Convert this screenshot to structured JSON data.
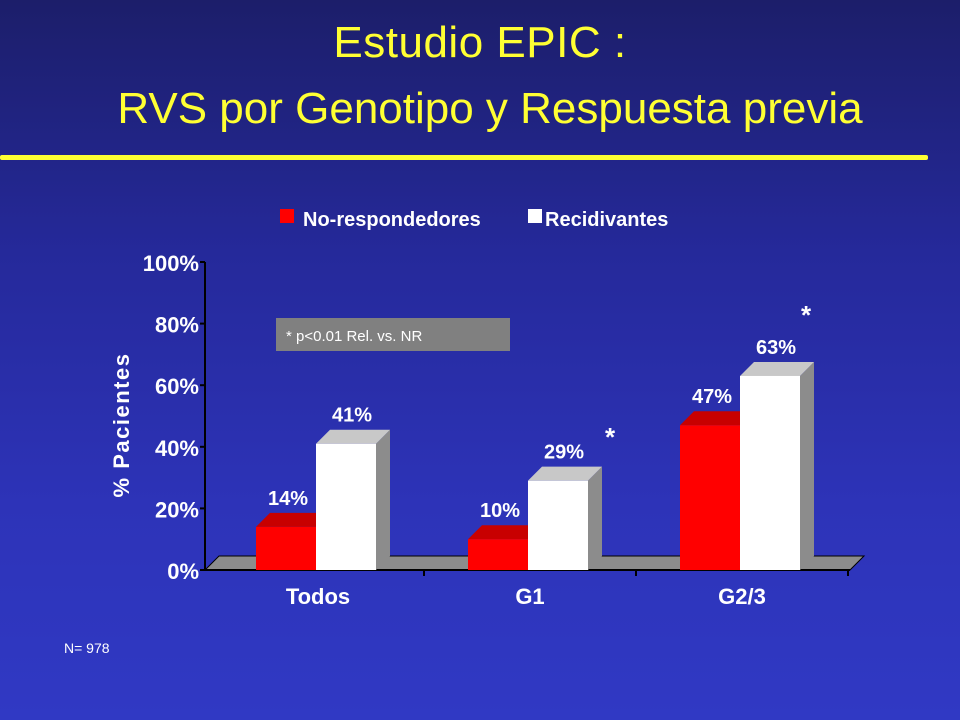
{
  "slide": {
    "title_line1": "Estudio EPIC :",
    "title_line2": "RVS por Genotipo y Respuesta previa",
    "footnote": "N= 978"
  },
  "chart_data": {
    "type": "bar",
    "categories": [
      "Todos",
      "G1",
      "G2/3"
    ],
    "series": [
      {
        "name": "No-respondedores",
        "color": "#ff0000",
        "values": [
          14,
          10,
          47
        ],
        "labels": [
          "14%",
          "10%",
          "47%"
        ]
      },
      {
        "name": "Recidivantes",
        "color": "#ffffff",
        "values": [
          41,
          29,
          63
        ],
        "labels": [
          "41%",
          "29%",
          "63%"
        ]
      }
    ],
    "ylabel": "% Pacientes",
    "ylim": [
      0,
      100
    ],
    "yticks": [
      0,
      20,
      40,
      60,
      80,
      100
    ],
    "ytick_labels": [
      "0%",
      "20%",
      "40%",
      "60%",
      "80%",
      "100%"
    ],
    "legend": "top-center",
    "annotation": "* p<0.01 Rel. vs. NR",
    "significance_marker": "*",
    "significant_categories": [
      "G1",
      "G2/3"
    ]
  }
}
